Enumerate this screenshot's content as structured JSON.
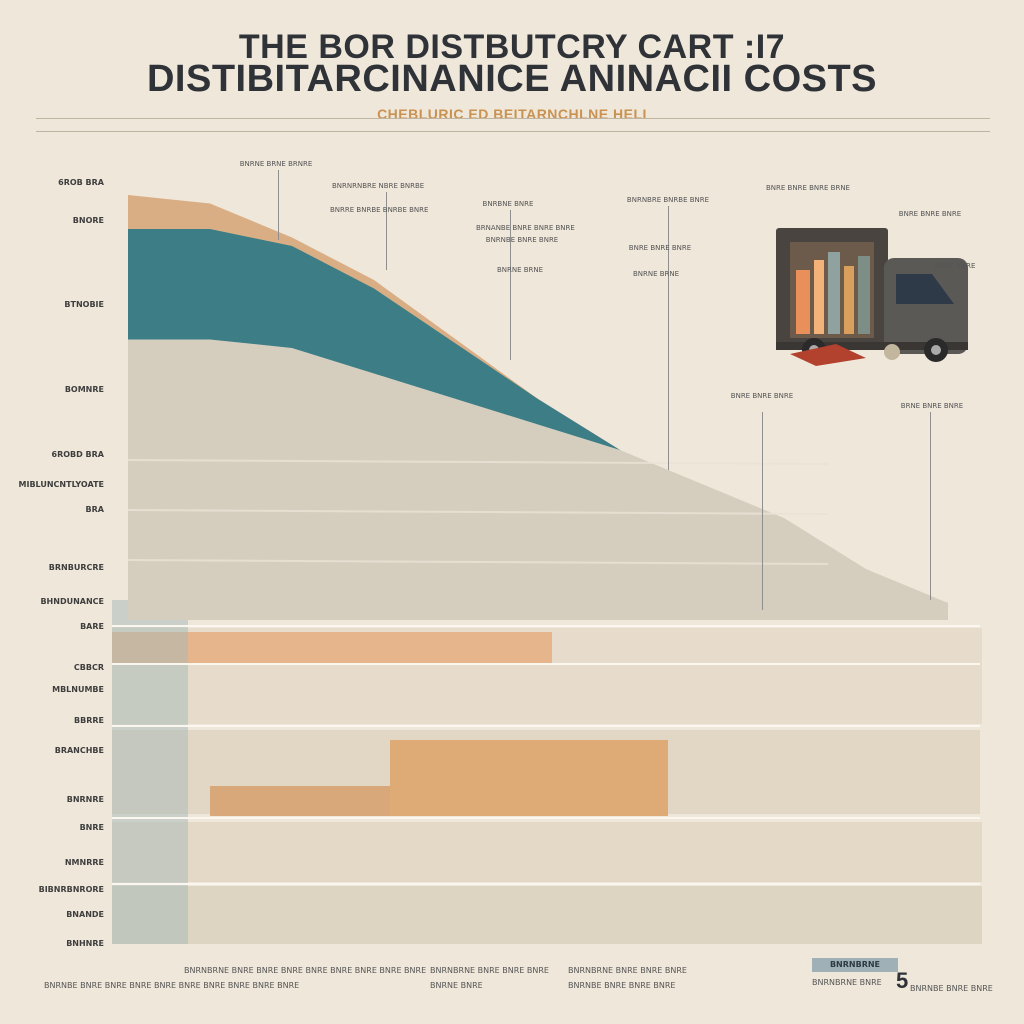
{
  "header": {
    "title_line1": "THE BOR DISTBUTCRY CART :I7",
    "title_line2": "DISTIBITARCINANICE ANINACII COSTS",
    "title_icon": "ornament-icon",
    "subtitle": "CHEBLURIC ED BEITARNCHLNE HELI"
  },
  "chart_data": {
    "type": "area",
    "title": "THE BOR DISTBUTCRY CART :I7 DISTIBITARCINANICE ANINACII COSTS",
    "subtitle": "CHEBLURIC ED BEITARNCHLNE HELI",
    "xlabel": "",
    "ylabel": "",
    "x": [
      0,
      10,
      20,
      30,
      40,
      50,
      60,
      70,
      80,
      90,
      100
    ],
    "ylim": [
      0,
      100
    ],
    "series": [
      {
        "values": [
          100,
          98,
          90,
          80,
          66,
          52,
          40,
          28,
          18,
          10,
          4
        ],
        "color": "#d9ae84"
      },
      {
        "values": [
          92,
          92,
          88,
          78,
          65,
          52,
          40,
          28,
          18,
          10,
          4
        ],
        "color": "#3c7d86"
      },
      {
        "values": [
          66,
          66,
          64,
          58,
          52,
          46,
          40,
          32,
          24,
          12,
          4
        ],
        "color": "#d5cebf"
      }
    ],
    "grid": false,
    "legend": "none"
  },
  "y_labels": [
    "6ROB  BRA",
    "BNORE",
    "BTNOBIE",
    "BOMNRE",
    "6ROBD  BRA",
    "MIBLUNCNTLYOATE",
    "BRA",
    "BRNBURCRE",
    "BHNDUNANCE",
    "BARE",
    "CBBCR",
    "MBLNUMBE",
    "BBRRE",
    "BRANCHBE",
    "BNRNRE",
    "BNRE",
    "NMNRRE",
    "BIBNRBNRORE",
    "BNANDE",
    "BNHNRE"
  ],
  "annotations": [
    "BNRNE BRNE BRNRE",
    "BNRNRNBRE NBRE BNRBE",
    "BNRRE BNRBE BNRBE BNRE",
    "BNRBNE BNRE",
    "BRNANBE BNRE BNRE BNRE",
    "BNRNBE BNRE BNRE",
    "BNRNBRE BNRBE BNRE",
    "BNRE BNRE BNRE",
    "BNRNE BRNE",
    "BNRNE BRNE",
    "BNRE BNRE BNRE BRNE",
    "BNRE BNRE BNRE",
    "BRNE BNRE",
    "BNRE BNRE BNRE",
    "BRNE BNRE BNRE"
  ],
  "footnotes": [
    "BNRNBRNE BNRE BNRE BNRE BNRE BNRE BNRE BNRE BNRE",
    "BNRNBRNE BNRE BNRE BNRE",
    "BNRNBRNE BNRE BNRE BNRE",
    "BNRNBE BNRE BNRE BNRE BNRE BNRE BNRE BNRE BNRE BNRE",
    "BNRNE BNRE",
    "BNRNBE BNRE BNRE BNRE",
    "BNRNBE BNRE BNRE"
  ],
  "badge": {
    "label": "BNRNBRNE",
    "number": "5",
    "caption": "BNRNBRNE BNRE"
  },
  "illustration": {
    "icon": "delivery-truck-icon"
  }
}
